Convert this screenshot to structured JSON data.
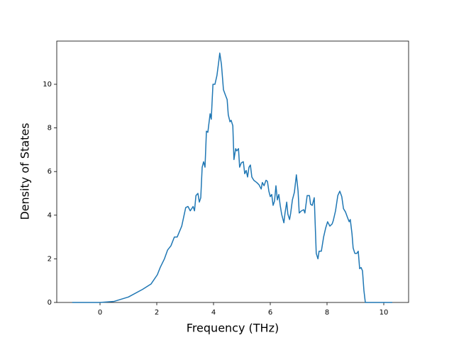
{
  "chart_data": {
    "type": "line",
    "x_label": "Frequency (THz)",
    "y_label": "Density of States",
    "xlim": [
      -1.525,
      10.875
    ],
    "ylim": [
      0,
      11.98
    ],
    "xticks": [
      0,
      2,
      4,
      6,
      8,
      10
    ],
    "yticks": [
      0,
      2,
      4,
      6,
      8,
      10
    ],
    "x": [
      -0.98,
      -0.5,
      0.0,
      0.5,
      1.0,
      1.5,
      1.8,
      2.02,
      2.12,
      2.27,
      2.38,
      2.5,
      2.62,
      2.72,
      2.88,
      3.02,
      3.1,
      3.18,
      3.28,
      3.33,
      3.38,
      3.45,
      3.5,
      3.55,
      3.6,
      3.65,
      3.7,
      3.75,
      3.8,
      3.88,
      3.92,
      3.98,
      4.05,
      4.12,
      4.18,
      4.22,
      4.28,
      4.35,
      4.42,
      4.48,
      4.52,
      4.58,
      4.62,
      4.68,
      4.72,
      4.78,
      4.82,
      4.88,
      4.92,
      4.98,
      5.05,
      5.1,
      5.15,
      5.2,
      5.25,
      5.3,
      5.35,
      5.42,
      5.52,
      5.6,
      5.68,
      5.72,
      5.78,
      5.85,
      5.9,
      5.95,
      6.0,
      6.05,
      6.1,
      6.15,
      6.2,
      6.25,
      6.3,
      6.35,
      6.4,
      6.48,
      6.52,
      6.58,
      6.62,
      6.68,
      6.72,
      6.78,
      6.85,
      6.92,
      6.98,
      7.02,
      7.1,
      7.18,
      7.22,
      7.3,
      7.38,
      7.42,
      7.48,
      7.55,
      7.62,
      7.68,
      7.72,
      7.8,
      7.88,
      7.95,
      8.02,
      8.1,
      8.18,
      8.22,
      8.3,
      8.38,
      8.45,
      8.52,
      8.58,
      8.65,
      8.72,
      8.78,
      8.82,
      8.88,
      8.92,
      8.98,
      9.05,
      9.1,
      9.15,
      9.2,
      9.25,
      9.3,
      9.35,
      10.3
    ],
    "series": [
      {
        "color": "#1f77b4",
        "values": [
          0,
          0,
          0,
          0.05,
          0.25,
          0.6,
          0.85,
          1.27,
          1.6,
          2.0,
          2.4,
          2.6,
          3.0,
          3.0,
          3.5,
          4.35,
          4.4,
          4.2,
          4.4,
          4.2,
          4.9,
          5.0,
          4.6,
          4.8,
          6.2,
          6.45,
          6.2,
          7.85,
          7.8,
          8.65,
          8.4,
          10.0,
          10.0,
          10.4,
          11.0,
          11.43,
          10.9,
          9.75,
          9.5,
          9.3,
          8.6,
          8.28,
          8.35,
          8.1,
          6.55,
          7.05,
          6.95,
          7.05,
          6.2,
          6.4,
          6.45,
          5.9,
          6.05,
          5.75,
          6.2,
          6.3,
          5.75,
          5.6,
          5.5,
          5.4,
          5.2,
          5.5,
          5.35,
          5.6,
          5.55,
          5.1,
          4.85,
          4.95,
          4.45,
          4.65,
          5.35,
          4.7,
          4.95,
          4.45,
          4.05,
          3.65,
          4.1,
          4.6,
          4.05,
          3.8,
          4.1,
          4.7,
          5.05,
          5.85,
          5.1,
          4.1,
          4.2,
          4.25,
          4.1,
          4.9,
          4.9,
          4.5,
          4.45,
          4.8,
          2.25,
          2.0,
          2.35,
          2.35,
          3.0,
          3.4,
          3.7,
          3.5,
          3.6,
          3.75,
          4.2,
          4.9,
          5.1,
          4.85,
          4.3,
          4.15,
          3.9,
          3.7,
          3.8,
          3.15,
          2.5,
          2.25,
          2.25,
          2.35,
          1.55,
          1.6,
          1.45,
          0.55,
          0,
          0
        ]
      }
    ]
  }
}
